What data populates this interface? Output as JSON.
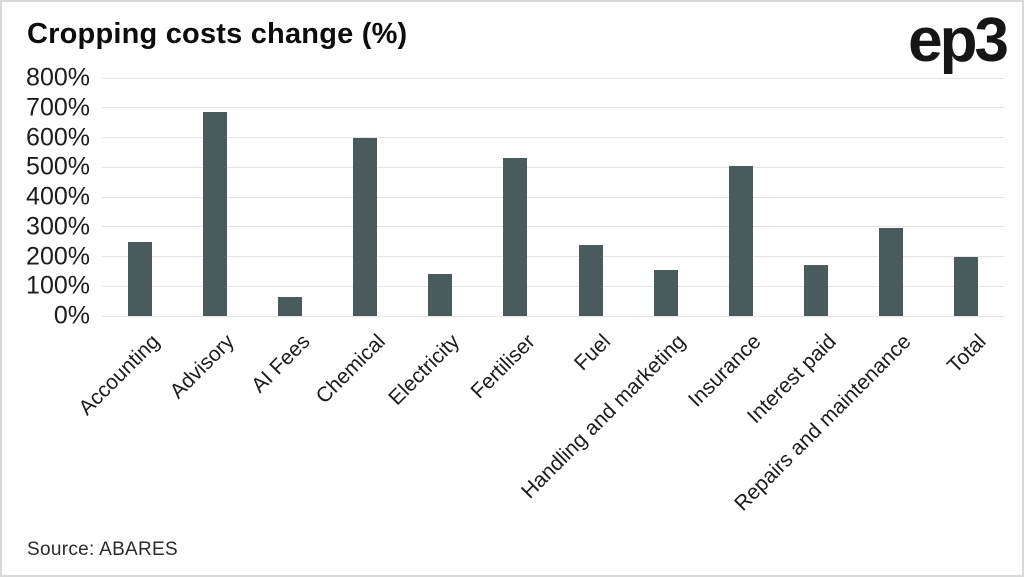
{
  "header": {
    "title": "Cropping costs change (%)",
    "logo_text": "ep3"
  },
  "footer": {
    "source": "Source: ABARES"
  },
  "colors": {
    "bar": "#4a5b5d",
    "gridline": "#e4e4e4",
    "border": "#d9d9d9",
    "text": "#1c1c1c",
    "background": "#ffffff"
  },
  "chart_data": {
    "type": "bar",
    "title": "Cropping costs change (%)",
    "categories": [
      "Accounting",
      "Advisory",
      "AI Fees",
      "Chemical",
      "Electricity",
      "Fertiliser",
      "Fuel",
      "Handling and marketing",
      "Insurance",
      "Interest paid",
      "Repairs and maintenance",
      "Total"
    ],
    "values": [
      250,
      685,
      65,
      600,
      140,
      530,
      240,
      155,
      505,
      170,
      295,
      200
    ],
    "xlabel": "",
    "ylabel": "",
    "ylim": [
      0,
      800
    ],
    "ytick_step": 100,
    "ytick_suffix": "%",
    "grid": "horizontal",
    "legend": "none",
    "bar_color": "#4a5b5d"
  }
}
